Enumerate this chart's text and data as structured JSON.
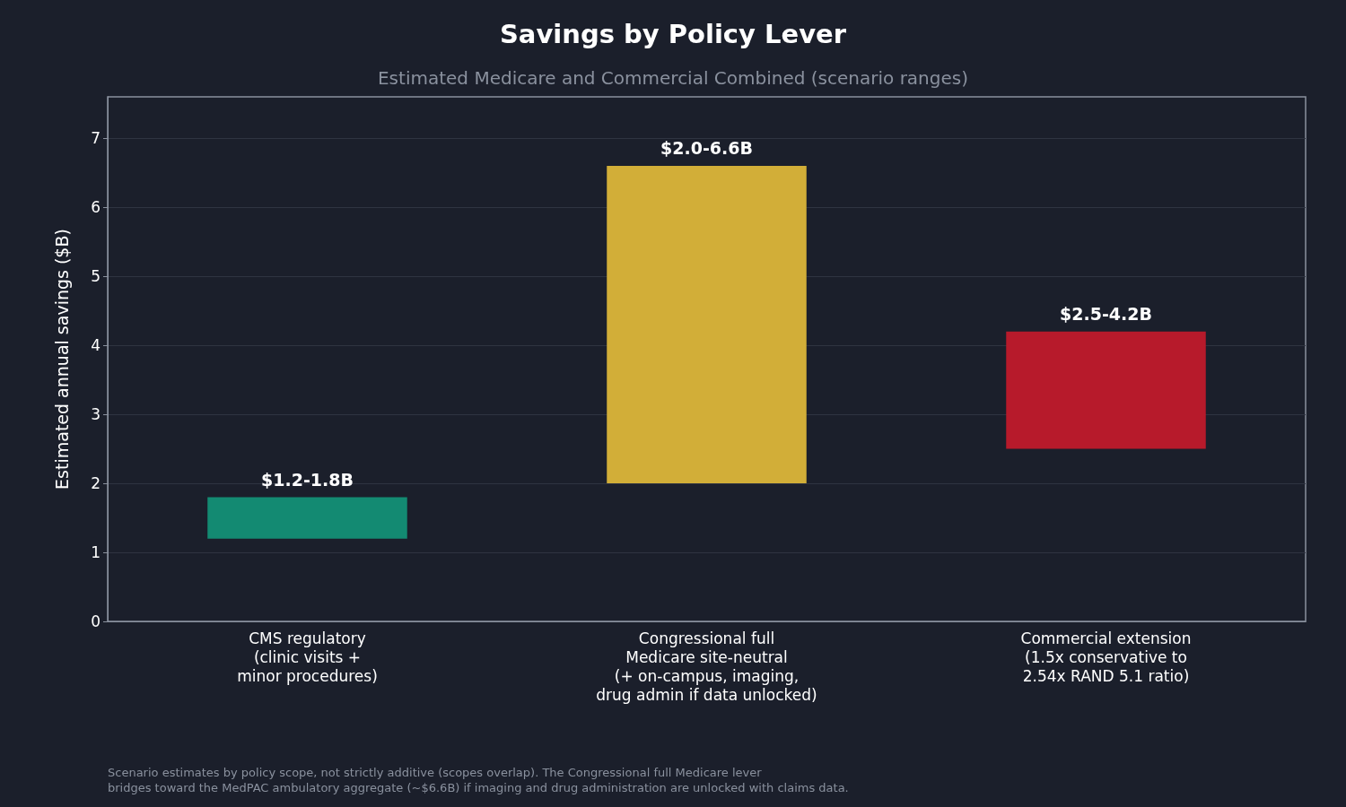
{
  "chart_data": {
    "type": "bar",
    "title": "Savings by Policy Lever",
    "subtitle": "Estimated Medicare and Commercial Combined (scenario ranges)",
    "ylabel": "Estimated annual savings ($B)",
    "categories": [
      "CMS regulatory\n(clinic visits +\nminor procedures)",
      "Congressional full\nMedicare site-neutral\n(+ on-campus, imaging,\ndrug admin if data unlocked)",
      "Commercial extension\n(1.5x conservative to\n2.54x RAND 5.1 ratio)"
    ],
    "base": [
      1.2,
      2.0,
      2.5
    ],
    "values": [
      0.6,
      4.6,
      1.7
    ],
    "colors": [
      "#138a72",
      "#d2ae38",
      "#b71a2b"
    ],
    "value_labels": [
      "$1.2-1.8B",
      "$2.0-6.6B",
      "$2.5-4.2B"
    ],
    "ylim": [
      0,
      7.6
    ],
    "yticks": [
      0,
      1,
      2,
      3,
      4,
      5,
      6,
      7
    ],
    "grid": "y",
    "annotations": [
      "Scenario estimates by policy scope, not strictly additive (scopes overlap). The Congressional full Medicare lever\nbridges toward the MedPAC ambulatory aggregate (~$6.6B) if imaging and drug administration are unlocked with claims data."
    ]
  }
}
